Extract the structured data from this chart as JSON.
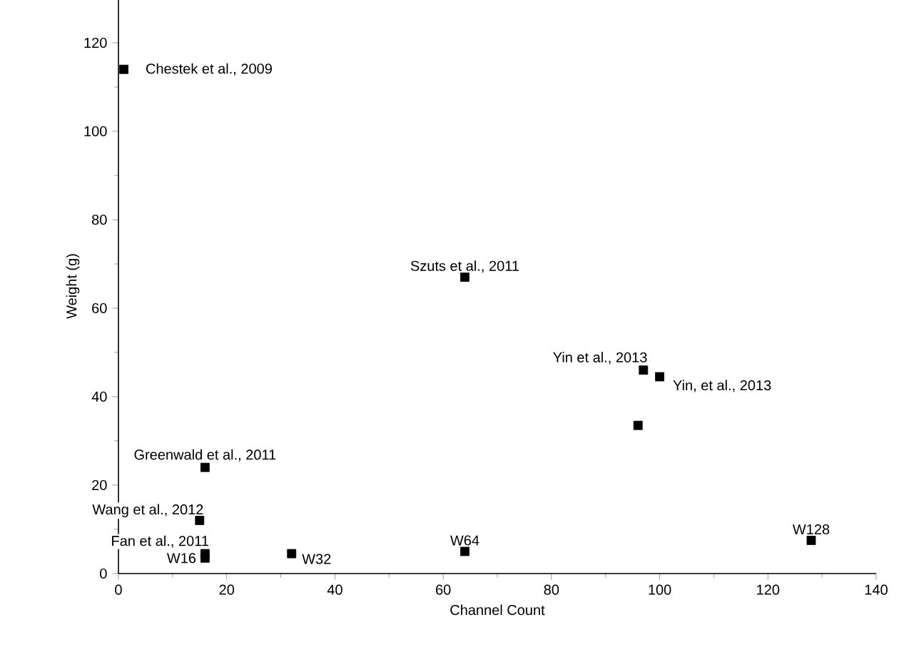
{
  "chart_data": {
    "type": "scatter",
    "xlabel": "Channel Count",
    "ylabel": "Weight (g)",
    "x": [
      1,
      64,
      97,
      100,
      96,
      16,
      15,
      16,
      16,
      32,
      64,
      128
    ],
    "values": [
      114,
      67,
      46,
      44.5,
      33.5,
      24,
      12,
      4.5,
      3.5,
      4.5,
      5,
      7.5
    ],
    "color": "#000000",
    "marker": "square",
    "grid": false,
    "xlim": [
      0,
      140
    ],
    "xticks": [
      0,
      20,
      40,
      60,
      80,
      100,
      120,
      140
    ],
    "ylim": [
      0,
      130
    ],
    "yticks": [
      0,
      20,
      40,
      60,
      80,
      100,
      120
    ],
    "annotations": [
      {
        "text": "Chestek et al., 2009",
        "x": 1,
        "y": 114
      },
      {
        "text": "Szuts et al., 2011",
        "x": 64,
        "y": 67
      },
      {
        "text": "Yin et al., 2013",
        "x": 97,
        "y": 46
      },
      {
        "text": "Yin, et al., 2013",
        "x": 100,
        "y": 44.5
      },
      {
        "text": "Greenwald et al., 2011",
        "x": 16,
        "y": 24
      },
      {
        "text": "Wang et al., 2012",
        "x": 15,
        "y": 12
      },
      {
        "text": "Fan et al., 2011",
        "x": 16,
        "y": 4.5
      },
      {
        "text": "W16",
        "x": 16,
        "y": 3.5
      },
      {
        "text": "W32",
        "x": 32,
        "y": 4.5
      },
      {
        "text": "W64",
        "x": 64,
        "y": 5
      },
      {
        "text": "W128",
        "x": 128,
        "y": 7.5
      }
    ]
  }
}
